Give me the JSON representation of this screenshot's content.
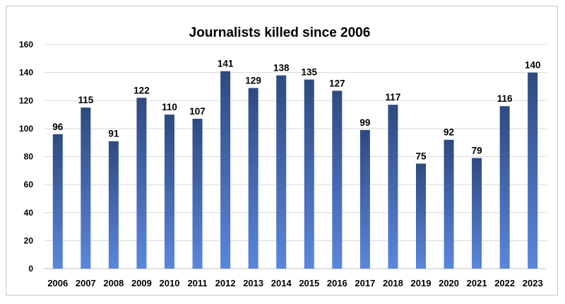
{
  "chart_data": {
    "type": "bar",
    "title": "Journalists killed since 2006",
    "categories": [
      "2006",
      "2007",
      "2008",
      "2009",
      "2010",
      "2011",
      "2012",
      "2013",
      "2014",
      "2015",
      "2016",
      "2017",
      "2018",
      "2019",
      "2020",
      "2021",
      "2022",
      "2023"
    ],
    "values": [
      96,
      115,
      91,
      122,
      110,
      107,
      141,
      129,
      138,
      135,
      127,
      99,
      117,
      75,
      92,
      79,
      116,
      140
    ],
    "ylim": [
      0,
      160
    ],
    "yticks": [
      0,
      20,
      40,
      60,
      80,
      100,
      120,
      140,
      160
    ],
    "grid": true,
    "data_labels": true,
    "bar_color_top": "#2e4a80",
    "bar_color_bottom": "#5b86dc"
  }
}
